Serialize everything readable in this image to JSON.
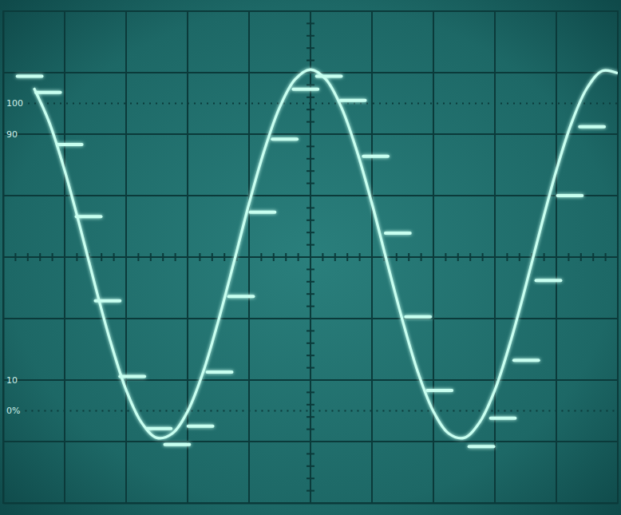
{
  "chart_data": {
    "type": "line",
    "xlim": [
      -5,
      5
    ],
    "ylim": [
      -4,
      4
    ],
    "xticks": [
      -5,
      -4,
      -3,
      -2,
      -1,
      0,
      1,
      2,
      3,
      4,
      5
    ],
    "yticks": [
      -4,
      -3,
      -2,
      -1,
      0,
      1,
      2,
      3,
      4
    ],
    "grid": true,
    "tick_labels": false,
    "series": [
      {
        "type": "line",
        "color": "#c8fff0",
        "x": [
          -4.5,
          -4.25,
          -4.0,
          -3.75,
          -3.5,
          -3.25,
          -3.0,
          -2.75,
          -2.5,
          -2.25,
          -2.0,
          -1.75,
          -1.5,
          -1.25,
          -1.0,
          -0.75,
          -0.5,
          -0.25,
          0.0,
          0.25,
          0.5,
          0.75,
          1.0,
          1.25,
          1.5,
          1.75,
          2.0,
          2.25,
          2.5,
          2.75,
          3.0,
          3.25,
          3.5,
          3.75,
          4.0,
          4.25,
          4.5,
          4.75,
          5.0
        ],
        "values": [
          2.75,
          2.19,
          1.41,
          0.49,
          -0.48,
          -1.39,
          -2.16,
          -2.69,
          -2.94,
          -2.87,
          -2.51,
          -1.88,
          -1.04,
          -0.1,
          0.87,
          1.74,
          2.44,
          2.89,
          3.05,
          2.89,
          2.44,
          1.74,
          0.87,
          -0.1,
          -1.04,
          -1.88,
          -2.51,
          -2.87,
          -2.94,
          -2.69,
          -2.16,
          -1.39,
          -0.48,
          0.49,
          1.41,
          2.19,
          2.75,
          3.03,
          2.99
        ]
      },
      {
        "type": "scatter",
        "marker": "dash",
        "color": "#c8fff0",
        "x": [
          -4.57,
          -4.27,
          -3.92,
          -3.61,
          -3.3,
          -2.9,
          -2.47,
          -2.17,
          -1.79,
          -1.48,
          -1.13,
          -0.78,
          -0.42,
          -0.08,
          0.3,
          0.69,
          1.06,
          1.42,
          1.75,
          2.1,
          2.78,
          3.13,
          3.51,
          3.87,
          4.22,
          4.58
        ],
        "values": [
          2.94,
          2.68,
          1.83,
          0.66,
          -0.71,
          -1.94,
          -2.79,
          -3.05,
          -2.75,
          -1.87,
          -0.64,
          0.73,
          1.92,
          2.73,
          2.94,
          2.55,
          1.64,
          0.39,
          -0.97,
          -2.17,
          -3.08,
          -2.62,
          -1.68,
          -0.38,
          1.0,
          2.12
        ]
      }
    ],
    "annotations": [
      {
        "text": "100",
        "y": 2.5
      },
      {
        "text": "90",
        "y": 2
      },
      {
        "text": "10",
        "y": -2
      },
      {
        "text": "0%",
        "y": -2.5
      }
    ]
  }
}
